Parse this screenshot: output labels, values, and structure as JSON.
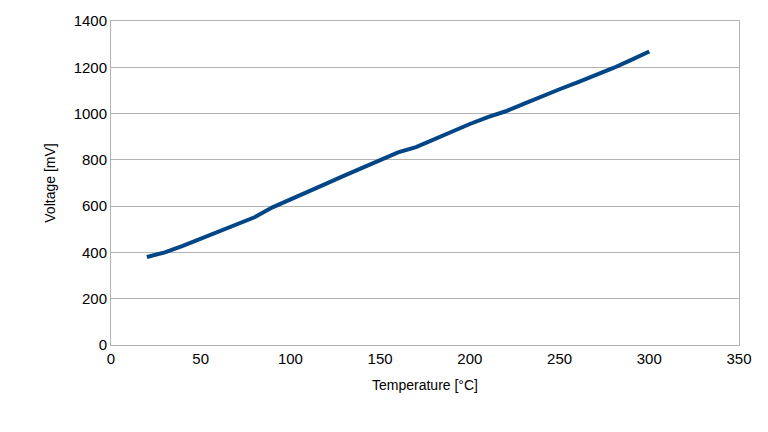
{
  "chart_data": {
    "type": "line",
    "x_label": "Temperature [°C]",
    "y_label": "Voltage [mV]",
    "x": [
      20,
      30,
      40,
      50,
      60,
      70,
      80,
      90,
      100,
      110,
      120,
      130,
      140,
      150,
      160,
      170,
      180,
      190,
      200,
      210,
      220,
      230,
      240,
      250,
      260,
      270,
      280,
      290,
      300
    ],
    "series": [
      {
        "color": "#004586",
        "values": [
          380,
          400,
          428,
          458,
          490,
          520,
          552,
          595,
          628,
          660,
          697,
          732,
          765,
          800,
          832,
          855,
          888,
          925,
          955,
          985,
          1010,
          1042,
          1075,
          1105,
          1135,
          1165,
          1197,
          1232,
          1268
        ]
      }
    ],
    "xlim": [
      0,
      350
    ],
    "xticks": [
      0,
      50,
      100,
      150,
      200,
      250,
      300,
      350
    ],
    "ylim": [
      0,
      1400
    ],
    "yticks": [
      0,
      200,
      400,
      600,
      800,
      1000,
      1200,
      1400
    ],
    "grid": true
  }
}
